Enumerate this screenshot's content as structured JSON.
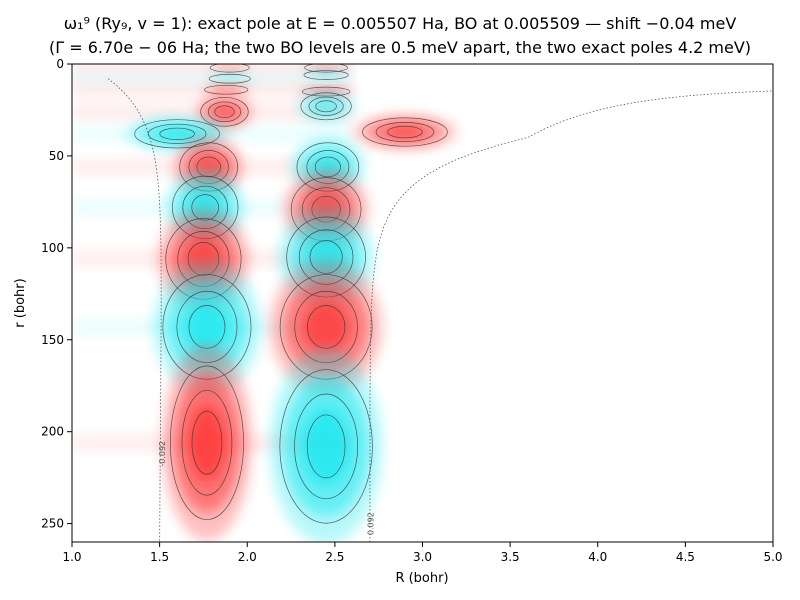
{
  "chart_data": {
    "type": "heatmap",
    "title_lines": [
      "ω₁⁹ (Ry₉, v = 1): exact pole at E = 0.005507 Ha, BO at 0.005509 — shift −0.04 meV",
      "(Γ = 6.70e − 06 Ha; the two BO levels are 0.5 meV apart, the two exact poles 4.2 meV)"
    ],
    "xlabel": "R (bohr)",
    "ylabel": "r (bohr)",
    "xlim": [
      1.0,
      5.0
    ],
    "ylim": [
      0,
      260
    ],
    "y_inverted": true,
    "x_ticks": [
      "1.0",
      "1.5",
      "2.0",
      "2.5",
      "3.0",
      "3.5",
      "4.0",
      "4.5",
      "5.0"
    ],
    "y_ticks": [
      "0",
      "50",
      "100",
      "150",
      "200",
      "250"
    ],
    "colormap": {
      "negative": "#00e5ee",
      "zero": "#ffffff",
      "positive": "#ff1a1a"
    },
    "contour_labels": [
      {
        "text": "-0.092",
        "R": 1.53,
        "r": 212
      },
      {
        "text": "0.092",
        "R": 2.72,
        "r": 250
      },
      {
        "text": "-0.092",
        "R": 1.24,
        "r": 0
      }
    ],
    "left_lobes": [
      {
        "R": 1.9,
        "r": 2,
        "sign": 1,
        "amp": 0.35
      },
      {
        "R": 1.9,
        "r": 8,
        "sign": -1,
        "amp": 0.45
      },
      {
        "R": 1.88,
        "r": 14,
        "sign": 1,
        "amp": 0.55
      },
      {
        "R": 1.87,
        "r": 26,
        "sign": 1,
        "amp": 0.75
      },
      {
        "R": 1.6,
        "r": 38,
        "sign": -1,
        "amp": 0.85
      },
      {
        "R": 1.78,
        "r": 56,
        "sign": 1,
        "amp": 0.85
      },
      {
        "R": 1.76,
        "r": 78,
        "sign": -1,
        "amp": 0.9
      },
      {
        "R": 1.75,
        "r": 106,
        "sign": 1,
        "amp": 0.92
      },
      {
        "R": 1.77,
        "r": 143,
        "sign": -1,
        "amp": 0.95
      },
      {
        "R": 1.77,
        "r": 206,
        "sign": 1,
        "amp": 1.0
      }
    ],
    "right_lobes": [
      {
        "R": 2.45,
        "r": 2,
        "sign": 1,
        "amp": 0.35
      },
      {
        "R": 2.45,
        "r": 6,
        "sign": -1,
        "amp": 0.45
      },
      {
        "R": 2.45,
        "r": 15,
        "sign": 1,
        "amp": 0.6
      },
      {
        "R": 2.45,
        "r": 23,
        "sign": -1,
        "amp": 0.6
      },
      {
        "R": 2.9,
        "r": 37,
        "sign": 1,
        "amp": 0.85
      },
      {
        "R": 2.46,
        "r": 56,
        "sign": -1,
        "amp": 0.85
      },
      {
        "R": 2.45,
        "r": 79,
        "sign": 1,
        "amp": 0.9
      },
      {
        "R": 2.45,
        "r": 105,
        "sign": -1,
        "amp": 0.92
      },
      {
        "R": 2.45,
        "r": 143,
        "sign": 1,
        "amp": 0.95
      },
      {
        "R": 2.45,
        "r": 208,
        "sign": -1,
        "amp": 1.0
      }
    ]
  }
}
